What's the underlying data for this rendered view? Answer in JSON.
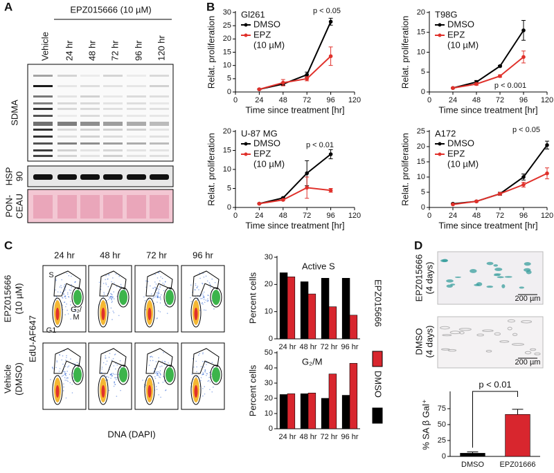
{
  "panels": {
    "labels": [
      "A",
      "B",
      "C",
      "D"
    ],
    "blot": {
      "header": "EPZ015666 (10 µM)",
      "lanes": [
        "Vehicle",
        "24 hr",
        "48 hr",
        "72 hr",
        "96 hr",
        "120 hr"
      ],
      "rows": [
        [
          "SDMA"
        ],
        [
          "HSP",
          "90"
        ],
        [
          "PON-",
          "CEAU"
        ]
      ]
    },
    "flow": {
      "columns": [
        "24 hr",
        "48 hr",
        "72 hr",
        "96 hr"
      ],
      "rows": [
        [
          "EPZ015666",
          "(10 µM)"
        ],
        [
          "Vehicle",
          "(DMSO)"
        ]
      ],
      "y_label": "EdU-AF647",
      "x_label": "DNA (DAPI)",
      "gates": [
        "S",
        "G1",
        "G₂/",
        "M"
      ]
    },
    "micrographs": {
      "rows": [
        [
          "EPZ015666",
          "(4 days)"
        ],
        [
          "DMSO",
          "(4 days)"
        ]
      ],
      "scale_bar": "200 µm"
    }
  },
  "chart_data": [
    {
      "type": "line",
      "title": "Gl261",
      "x_label": "Time since treatment [hr]",
      "y_label": "Relat. proliferation",
      "legend_note": "(10 µM)",
      "annotation": "p < 0.05",
      "x": [
        24,
        48,
        72,
        96
      ],
      "xlim": [
        0,
        120
      ],
      "xticks": [
        0,
        24,
        48,
        72,
        96,
        120
      ],
      "ylim": [
        0,
        30
      ],
      "yticks": [
        0,
        5,
        10,
        15,
        20,
        25,
        30
      ],
      "series": [
        {
          "name": "DMSO",
          "color": "#000000",
          "values": [
            1,
            3,
            6.5,
            26.5
          ],
          "errors": [
            0.2,
            0.5,
            1,
            1.3
          ]
        },
        {
          "name": "EPZ",
          "color": "#e0312b",
          "values": [
            1,
            3.5,
            5,
            13.5
          ],
          "errors": [
            0.2,
            1.2,
            0.8,
            3.5
          ]
        }
      ]
    },
    {
      "type": "line",
      "title": "T98G",
      "x_label": "Time since treatment [hr]",
      "y_label": "Relat. proliferation",
      "legend_note": "(10 µM)",
      "annotation": "p < 0.001",
      "x": [
        24,
        48,
        72,
        96
      ],
      "xlim": [
        0,
        120
      ],
      "xticks": [
        0,
        24,
        48,
        72,
        96,
        120
      ],
      "ylim": [
        0,
        20
      ],
      "yticks": [
        0,
        5,
        10,
        15,
        20
      ],
      "series": [
        {
          "name": "DMSO",
          "color": "#000000",
          "values": [
            1,
            2.5,
            6.5,
            15.5
          ],
          "errors": [
            0.1,
            0.4,
            0.2,
            2.5
          ]
        },
        {
          "name": "EPZ",
          "color": "#e0312b",
          "values": [
            1,
            2,
            4,
            8.8
          ],
          "errors": [
            0.1,
            0.3,
            0.3,
            1.5
          ]
        }
      ]
    },
    {
      "type": "line",
      "title": "U-87 MG",
      "x_label": "Time since treatment [hr]",
      "y_label": "Relat. proliferation",
      "legend_note": "(10 µM)",
      "annotation": "p < 0.01",
      "x": [
        24,
        48,
        72,
        96
      ],
      "xlim": [
        0,
        120
      ],
      "xticks": [
        0,
        24,
        48,
        72,
        96,
        120
      ],
      "ylim": [
        0,
        20
      ],
      "yticks": [
        0,
        5,
        10,
        15,
        20
      ],
      "series": [
        {
          "name": "DMSO",
          "color": "#000000",
          "values": [
            1,
            2.5,
            9,
            14
          ],
          "errors": [
            0.1,
            0.2,
            3.3,
            1.2
          ]
        },
        {
          "name": "EPZ",
          "color": "#e0312b",
          "values": [
            1,
            2,
            5.2,
            4.5
          ],
          "errors": [
            0.1,
            0.2,
            2.8,
            0.5
          ]
        }
      ]
    },
    {
      "type": "line",
      "title": "A172",
      "x_label": "Time since treatment [hr]",
      "y_label": "Relat. proliferation",
      "legend_note": "(10 µM)",
      "annotation": "p < 0.05",
      "x": [
        24,
        48,
        72,
        96,
        120
      ],
      "xlim": [
        0,
        120
      ],
      "xticks": [
        0,
        24,
        48,
        72,
        96,
        120
      ],
      "ylim": [
        0,
        25
      ],
      "yticks": [
        0,
        5,
        10,
        15,
        20,
        25
      ],
      "series": [
        {
          "name": "DMSO",
          "color": "#000000",
          "values": [
            1.2,
            2,
            4.5,
            10,
            20.5
          ],
          "errors": [
            0.2,
            0.2,
            0.5,
            1,
            1.3
          ]
        },
        {
          "name": "EPZ",
          "color": "#e0312b",
          "values": [
            1,
            2,
            4.5,
            7.5,
            11.2
          ],
          "errors": [
            0.1,
            0.2,
            0.4,
            0.8,
            1.8
          ]
        }
      ]
    },
    {
      "type": "bar",
      "title": "Active S",
      "y_label": "Percent cells",
      "categories": [
        "24 hr",
        "48 hr",
        "72 hr",
        "96 hr"
      ],
      "ylim": [
        0,
        30
      ],
      "yticks": [
        0,
        10,
        20,
        30
      ],
      "series": [
        {
          "name": "DMSO",
          "color": "#000000",
          "values": [
            24.3,
            21,
            22.3,
            22.3
          ]
        },
        {
          "name": "EPZ015666",
          "color": "#d8262e",
          "values": [
            22.8,
            16.5,
            11.8,
            8.7
          ]
        }
      ]
    },
    {
      "type": "bar",
      "title": "G₂/M",
      "y_label": "Percent cells",
      "categories": [
        "24 hr",
        "48 hr",
        "72 hr",
        "96 hr"
      ],
      "ylim": [
        0,
        50
      ],
      "yticks": [
        0,
        10,
        20,
        30,
        40,
        50
      ],
      "series": [
        {
          "color": "#000000",
          "values": [
            22.5,
            23,
            20,
            22
          ]
        },
        {
          "color": "#d8262e",
          "values": [
            23,
            23.5,
            36,
            43
          ]
        }
      ]
    },
    {
      "type": "bar",
      "y_label": "% SA β Gal⁺",
      "annotation": "p < 0.01",
      "categories": [
        "DMSO",
        "EPZ01666"
      ],
      "values": [
        5,
        66
      ],
      "errors": [
        2,
        8
      ],
      "colors": [
        "#000000",
        "#d8262e"
      ],
      "ylim": [
        0,
        100
      ],
      "yticks": [
        0,
        25,
        50,
        75
      ]
    }
  ]
}
